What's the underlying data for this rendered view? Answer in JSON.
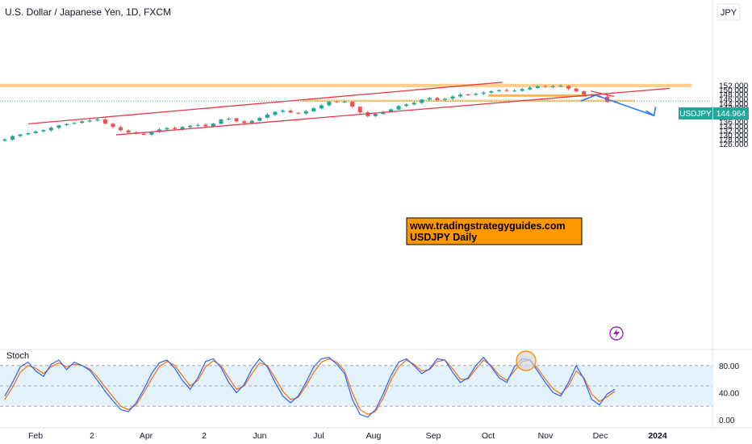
{
  "header": {
    "title": "U.S. Dollar / Japanese Yen, 1D, FXCM",
    "currency": "JPY"
  },
  "price_badge": {
    "symbol": "USDJPY",
    "value": "144.964"
  },
  "watermark": {
    "line1": "www.tradingstrategyguides.com",
    "line2": "USDJPY Daily"
  },
  "indicator": {
    "name": "Stoch"
  },
  "colors": {
    "up": "#26a69a",
    "down": "#ef5350",
    "channel": "#e53945",
    "zone": "#ffb74d",
    "projection": "#2979ff",
    "stoch_k": "#2962ff",
    "stoch_d": "#ff6d00",
    "stoch_band": "#e3f2fd",
    "badge": "#26a69a",
    "watermark_bg": "#ff9800",
    "flash": "#9c27b0"
  },
  "icons": {
    "flash": "lightning-icon"
  },
  "chart_data": [
    {
      "type": "candlestick",
      "title": "U.S. Dollar / Japanese Yen, 1D, FXCM",
      "x_axis": {
        "tick_labels": [
          "Feb",
          "2",
          "Apr",
          "2",
          "Jun",
          "Jul",
          "Aug",
          "Sep",
          "Oct",
          "Nov",
          "Dec",
          "2024"
        ]
      },
      "y_axis": {
        "label": "JPY",
        "tick_labels": [
          "126.000",
          "128.000",
          "130.000",
          "132.000",
          "134.000",
          "136.000",
          "138.000",
          "140.000",
          "142.000",
          "144.000",
          "146.000",
          "148.000",
          "150.000",
          "152.000"
        ],
        "range": [
          125,
          154
        ]
      },
      "last_value": 144.964,
      "series": [
        {
          "closes": [
            128.0,
            129.5,
            130.2,
            130.7,
            131.5,
            132.1,
            133.2,
            134.2,
            134.8,
            135.3,
            136.0,
            136.4,
            136.9,
            135.0,
            133.5,
            132.0,
            131.0,
            130.5,
            130.2,
            131.2,
            132.4,
            133.0,
            132.6,
            133.5,
            134.0,
            134.4,
            133.8,
            135.0,
            136.8,
            137.2,
            136.0,
            135.2,
            136.2,
            137.5,
            139.0,
            140.2,
            140.8,
            139.9,
            139.4,
            140.5,
            141.8,
            143.1,
            144.7,
            144.5,
            144.7,
            142.5,
            140.0,
            138.2,
            139.3,
            140.2,
            141.3,
            142.8,
            143.5,
            144.2,
            145.6,
            146.3,
            145.4,
            146.0,
            147.0,
            147.8,
            147.6,
            148.2,
            148.7,
            149.3,
            149.8,
            149.5,
            149.6,
            150.3,
            150.9,
            151.6,
            151.3,
            151.5,
            151.7,
            150.5,
            149.3,
            147.9,
            147.4,
            146.9,
            144.6,
            144.964
          ],
          "name": ""
        }
      ],
      "annotations": {
        "channel_upper": [
          [
            0.04,
            134.9
          ],
          [
            0.705,
            153.3
          ]
        ],
        "channel_lower": [
          [
            0.163,
            130.0
          ],
          [
            0.94,
            150.6
          ]
        ],
        "projection": [
          [
            0.815,
            144.964
          ],
          [
            0.836,
            147.6
          ],
          [
            0.918,
            138.5
          ]
        ],
        "zone_top": [
          151.1,
          152.6
        ],
        "zone_mid": [
          144.6,
          145.6
        ],
        "support_line": 147.4
      }
    },
    {
      "type": "line",
      "title": "Stoch",
      "y_axis": {
        "tick_labels": [
          "0.00",
          "40.00",
          "80.00"
        ],
        "range": [
          -5,
          100
        ]
      },
      "guides": [
        20,
        50,
        80
      ],
      "series": [
        {
          "name": "",
          "values": [
            35,
            55,
            78,
            85,
            72,
            64,
            82,
            88,
            74,
            85,
            80,
            73,
            58,
            42,
            28,
            15,
            12,
            25,
            45,
            68,
            84,
            88,
            76,
            58,
            45,
            62,
            86,
            90,
            77,
            55,
            40,
            52,
            75,
            90,
            78,
            55,
            35,
            25,
            35,
            55,
            78,
            90,
            92,
            82,
            68,
            30,
            8,
            4,
            15,
            38,
            65,
            85,
            90,
            80,
            68,
            75,
            90,
            88,
            70,
            55,
            62,
            80,
            92,
            78,
            62,
            55,
            78,
            90,
            88,
            72,
            55,
            40,
            35,
            55,
            80,
            60,
            30,
            22,
            38,
            45
          ]
        },
        {
          "name": "",
          "values": [
            30,
            48,
            70,
            80,
            76,
            68,
            78,
            84,
            78,
            82,
            80,
            75,
            63,
            48,
            34,
            20,
            15,
            22,
            40,
            60,
            78,
            86,
            80,
            65,
            50,
            58,
            78,
            87,
            80,
            62,
            45,
            50,
            68,
            84,
            80,
            62,
            42,
            30,
            33,
            50,
            70,
            85,
            90,
            85,
            72,
            40,
            15,
            8,
            12,
            32,
            58,
            78,
            88,
            82,
            72,
            74,
            86,
            88,
            75,
            60,
            60,
            75,
            88,
            80,
            66,
            58,
            72,
            86,
            88,
            76,
            60,
            46,
            38,
            50,
            72,
            62,
            38,
            27,
            34,
            42
          ]
        }
      ]
    }
  ]
}
